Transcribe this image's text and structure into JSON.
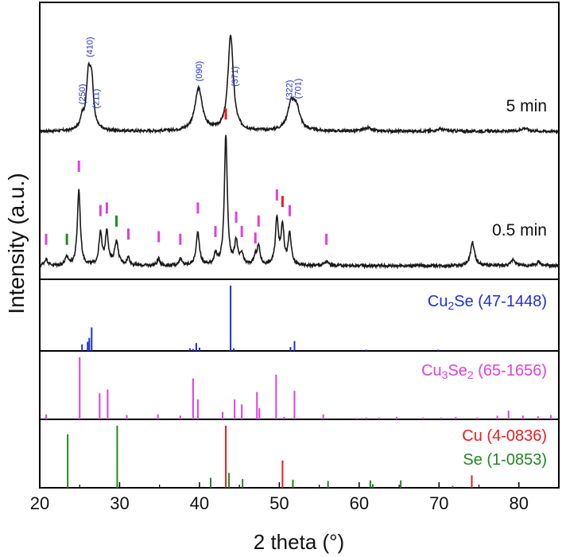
{
  "chart_data": {
    "type": "line",
    "xlabel": "2 theta (°)",
    "ylabel": "Intensity (a.u.)",
    "xlim": [
      20,
      85
    ],
    "xticks": [
      20,
      30,
      40,
      50,
      60,
      70,
      80
    ],
    "colors": {
      "trace": "#1a1a1a",
      "cu2se": "#1f2fd6",
      "cu3se2": "#e040e0",
      "cu": "#ee1c1c",
      "se": "#1e8a1e",
      "hkl": "#2431c8"
    },
    "series": [
      {
        "name": "5 min",
        "label": "5 min",
        "baseline": 0.18,
        "noise": 0.012,
        "peaks": [
          {
            "x": 25.3,
            "h": 0.1,
            "w": 0.3
          },
          {
            "x": 26.1,
            "h": 0.46,
            "w": 0.32
          },
          {
            "x": 26.5,
            "h": 0.38,
            "w": 0.28
          },
          {
            "x": 39.9,
            "h": 0.38,
            "w": 0.55
          },
          {
            "x": 43.9,
            "h": 0.86,
            "w": 0.4
          },
          {
            "x": 51.5,
            "h": 0.24,
            "w": 0.55
          },
          {
            "x": 52.2,
            "h": 0.16,
            "w": 0.5
          },
          {
            "x": 61.0,
            "h": 0.03,
            "w": 0.5
          },
          {
            "x": 70.2,
            "h": 0.02,
            "w": 0.6
          },
          {
            "x": 80.7,
            "h": 0.03,
            "w": 0.5
          }
        ],
        "hkl_labels": [
          {
            "x": 25.3,
            "text": "(250)"
          },
          {
            "x": 26.2,
            "text": "(410)"
          },
          {
            "x": 27.0,
            "text": "(211)"
          },
          {
            "x": 39.9,
            "text": "(090)"
          },
          {
            "x": 44.4,
            "text": "(371)"
          },
          {
            "x": 51.2,
            "text": "(322)"
          },
          {
            "x": 52.3,
            "text": "(701)"
          }
        ]
      },
      {
        "name": "0.5 min",
        "label": "0.5 min",
        "baseline": 0.1,
        "noise": 0.012,
        "peaks": [
          {
            "x": 20.8,
            "h": 0.05,
            "w": 0.25
          },
          {
            "x": 23.4,
            "h": 0.06,
            "w": 0.25
          },
          {
            "x": 24.9,
            "h": 0.58,
            "w": 0.22
          },
          {
            "x": 27.6,
            "h": 0.24,
            "w": 0.22
          },
          {
            "x": 28.4,
            "h": 0.26,
            "w": 0.22
          },
          {
            "x": 29.6,
            "h": 0.18,
            "w": 0.28
          },
          {
            "x": 31.1,
            "h": 0.06,
            "w": 0.22
          },
          {
            "x": 34.9,
            "h": 0.05,
            "w": 0.22
          },
          {
            "x": 37.6,
            "h": 0.05,
            "w": 0.22
          },
          {
            "x": 39.8,
            "h": 0.25,
            "w": 0.25
          },
          {
            "x": 42.0,
            "h": 0.08,
            "w": 0.22
          },
          {
            "x": 43.3,
            "h": 1.0,
            "w": 0.22
          },
          {
            "x": 44.6,
            "h": 0.18,
            "w": 0.22
          },
          {
            "x": 45.3,
            "h": 0.08,
            "w": 0.22
          },
          {
            "x": 47.0,
            "h": 0.06,
            "w": 0.22
          },
          {
            "x": 47.4,
            "h": 0.14,
            "w": 0.22
          },
          {
            "x": 49.7,
            "h": 0.36,
            "w": 0.22
          },
          {
            "x": 50.4,
            "h": 0.3,
            "w": 0.22
          },
          {
            "x": 51.3,
            "h": 0.24,
            "w": 0.22
          },
          {
            "x": 55.9,
            "h": 0.03,
            "w": 0.3
          },
          {
            "x": 74.2,
            "h": 0.18,
            "w": 0.3
          },
          {
            "x": 79.3,
            "h": 0.05,
            "w": 0.3
          },
          {
            "x": 82.5,
            "h": 0.03,
            "w": 0.3
          }
        ],
        "phase_ticks": [
          {
            "x": 20.8,
            "h": 0.16,
            "phase": "cu3se2"
          },
          {
            "x": 23.4,
            "h": 0.16,
            "phase": "se"
          },
          {
            "x": 24.9,
            "h": 0.72,
            "phase": "cu3se2"
          },
          {
            "x": 27.6,
            "h": 0.38,
            "phase": "cu3se2"
          },
          {
            "x": 28.4,
            "h": 0.4,
            "phase": "cu3se2"
          },
          {
            "x": 29.6,
            "h": 0.3,
            "phase": "se"
          },
          {
            "x": 31.1,
            "h": 0.2,
            "phase": "cu3se2"
          },
          {
            "x": 34.9,
            "h": 0.18,
            "phase": "cu3se2"
          },
          {
            "x": 37.6,
            "h": 0.16,
            "phase": "cu3se2"
          },
          {
            "x": 39.8,
            "h": 0.4,
            "phase": "cu3se2"
          },
          {
            "x": 42.0,
            "h": 0.22,
            "phase": "cu3se2"
          },
          {
            "x": 43.3,
            "h": 1.12,
            "phase": "cu"
          },
          {
            "x": 44.6,
            "h": 0.33,
            "phase": "cu3se2"
          },
          {
            "x": 45.3,
            "h": 0.22,
            "phase": "cu3se2"
          },
          {
            "x": 47.0,
            "h": 0.17,
            "phase": "cu3se2"
          },
          {
            "x": 47.4,
            "h": 0.3,
            "phase": "cu3se2"
          },
          {
            "x": 49.7,
            "h": 0.5,
            "phase": "cu3se2"
          },
          {
            "x": 50.4,
            "h": 0.45,
            "phase": "cu"
          },
          {
            "x": 51.3,
            "h": 0.38,
            "phase": "cu3se2"
          },
          {
            "x": 55.9,
            "h": 0.16,
            "phase": "cu3se2"
          }
        ]
      }
    ],
    "reference_patterns": [
      {
        "name": "Cu2Se (47-1448)",
        "text_parts": [
          {
            "text": "Cu",
            "sub": false
          },
          {
            "text": "2",
            "sub": true
          },
          {
            "text": "Se (47-1448)",
            "sub": false
          }
        ],
        "color_key": "cu2se",
        "lines": [
          {
            "x": 25.3,
            "y": 0.1
          },
          {
            "x": 26.0,
            "y": 0.14
          },
          {
            "x": 26.2,
            "y": 0.2
          },
          {
            "x": 26.5,
            "y": 0.36
          },
          {
            "x": 38.8,
            "y": 0.04
          },
          {
            "x": 39.2,
            "y": 0.03
          },
          {
            "x": 39.6,
            "y": 0.12
          },
          {
            "x": 40.0,
            "y": 0.05
          },
          {
            "x": 43.9,
            "y": 1.0
          },
          {
            "x": 44.3,
            "y": 0.04
          },
          {
            "x": 51.4,
            "y": 0.06
          },
          {
            "x": 51.9,
            "y": 0.15
          },
          {
            "x": 60.9,
            "y": 0.02
          },
          {
            "x": 69.9,
            "y": 0.02
          }
        ]
      },
      {
        "name": "Cu3Se2 (65-1656)",
        "text_parts": [
          {
            "text": "Cu",
            "sub": false
          },
          {
            "text": "3",
            "sub": true
          },
          {
            "text": "Se",
            "sub": false
          },
          {
            "text": "2",
            "sub": true
          },
          {
            "text": " (65-1656)",
            "sub": false
          }
        ],
        "color_key": "cu3se2",
        "lines": [
          {
            "x": 20.8,
            "y": 0.08
          },
          {
            "x": 25.0,
            "y": 1.0
          },
          {
            "x": 27.5,
            "y": 0.42
          },
          {
            "x": 28.5,
            "y": 0.48
          },
          {
            "x": 30.9,
            "y": 0.07
          },
          {
            "x": 34.8,
            "y": 0.08
          },
          {
            "x": 37.6,
            "y": 0.06
          },
          {
            "x": 39.2,
            "y": 0.66
          },
          {
            "x": 39.8,
            "y": 0.32
          },
          {
            "x": 42.9,
            "y": 0.12
          },
          {
            "x": 44.4,
            "y": 0.32
          },
          {
            "x": 45.3,
            "y": 0.24
          },
          {
            "x": 47.2,
            "y": 0.44
          },
          {
            "x": 47.5,
            "y": 0.18
          },
          {
            "x": 49.6,
            "y": 0.72
          },
          {
            "x": 50.6,
            "y": 0.04
          },
          {
            "x": 51.9,
            "y": 0.46
          },
          {
            "x": 55.5,
            "y": 0.08
          },
          {
            "x": 59.7,
            "y": 0.02
          },
          {
            "x": 60.9,
            "y": 0.03
          },
          {
            "x": 62.5,
            "y": 0.03
          },
          {
            "x": 64.7,
            "y": 0.04
          },
          {
            "x": 68.0,
            "y": 0.03
          },
          {
            "x": 70.3,
            "y": 0.03
          },
          {
            "x": 72.1,
            "y": 0.04
          },
          {
            "x": 74.8,
            "y": 0.03
          },
          {
            "x": 77.3,
            "y": 0.06
          },
          {
            "x": 78.7,
            "y": 0.14
          },
          {
            "x": 80.5,
            "y": 0.06
          },
          {
            "x": 82.4,
            "y": 0.05
          },
          {
            "x": 84.0,
            "y": 0.07
          }
        ]
      },
      {
        "name": "Cu (4-0836) / Se (1-0853)",
        "labels": [
          {
            "name": "Cu (4-0836)",
            "color_key": "cu",
            "text_parts": [
              {
                "text": "Cu (4-0836)",
                "sub": false
              }
            ]
          },
          {
            "name": "Se (1-0853)",
            "color_key": "se",
            "text_parts": [
              {
                "text": "Se (1-0853)",
                "sub": false
              }
            ]
          }
        ],
        "line_sets": [
          {
            "color_key": "se",
            "lines": [
              {
                "x": 23.5,
                "y": 0.86
              },
              {
                "x": 29.7,
                "y": 1.0
              },
              {
                "x": 41.4,
                "y": 0.16
              },
              {
                "x": 43.7,
                "y": 0.24
              },
              {
                "x": 45.4,
                "y": 0.14
              },
              {
                "x": 51.7,
                "y": 0.13
              },
              {
                "x": 56.1,
                "y": 0.11
              },
              {
                "x": 61.4,
                "y": 0.12
              },
              {
                "x": 61.7,
                "y": 0.06
              },
              {
                "x": 65.2,
                "y": 0.12
              },
              {
                "x": 71.7,
                "y": 0.03
              }
            ]
          },
          {
            "color_key": "cu",
            "lines": [
              {
                "x": 43.3,
                "y": 1.0
              },
              {
                "x": 50.4,
                "y": 0.44
              },
              {
                "x": 74.1,
                "y": 0.2
              }
            ]
          }
        ]
      }
    ]
  }
}
